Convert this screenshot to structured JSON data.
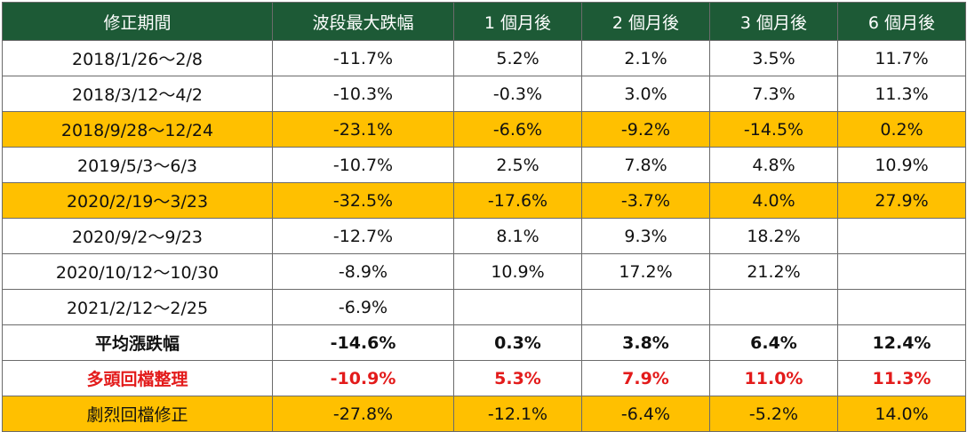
{
  "header": [
    "修正期間",
    "波段最大跌幅",
    "1 個月後",
    "2 個月後",
    "3 個月後",
    "6 個月後"
  ],
  "rows": [
    {
      "cells": [
        "2018/1/26～2/8",
        "-11.7%",
        "5.2%",
        "2.1%",
        "3.5%",
        "11.7%"
      ]
    },
    {
      "cells": [
        "2018/3/12～4/2",
        "-10.3%",
        "-0.3%",
        "3.0%",
        "7.3%",
        "11.3%"
      ]
    },
    {
      "cells": [
        "2018/9/28～12/24",
        "-23.1%",
        "-6.6%",
        "-9.2%",
        "-14.5%",
        "0.2%"
      ]
    },
    {
      "cells": [
        "2019/5/3～6/3",
        "-10.7%",
        "2.5%",
        "7.8%",
        "4.8%",
        "10.9%"
      ]
    },
    {
      "cells": [
        "2020/2/19～3/23",
        "-32.5%",
        "-17.6%",
        "-3.7%",
        "4.0%",
        "27.9%"
      ]
    },
    {
      "cells": [
        "2020/9/2～9/23",
        "-12.7%",
        "8.1%",
        "9.3%",
        "18.2%",
        ""
      ]
    },
    {
      "cells": [
        "2020/10/12～10/30",
        "-8.9%",
        "10.9%",
        "17.2%",
        "21.2%",
        ""
      ]
    },
    {
      "cells": [
        "2021/2/12～2/25",
        "-6.9%",
        "",
        "",
        "",
        ""
      ]
    },
    {
      "cells": [
        "平均漲跌幅",
        "-14.6%",
        "0.3%",
        "3.8%",
        "6.4%",
        "12.4%"
      ]
    },
    {
      "cells": [
        "多頭回檔整理",
        "-10.9%",
        "5.3%",
        "7.9%",
        "11.0%",
        "11.3%"
      ]
    },
    {
      "cells": [
        "劇烈回檔修正",
        "-27.8%",
        "-12.1%",
        "-6.4%",
        "-5.2%",
        "14.0%"
      ]
    }
  ],
  "colors": {
    "header_bg": "#1d5a36",
    "highlight": "#ffc000",
    "red_text": "#e31b1b"
  }
}
